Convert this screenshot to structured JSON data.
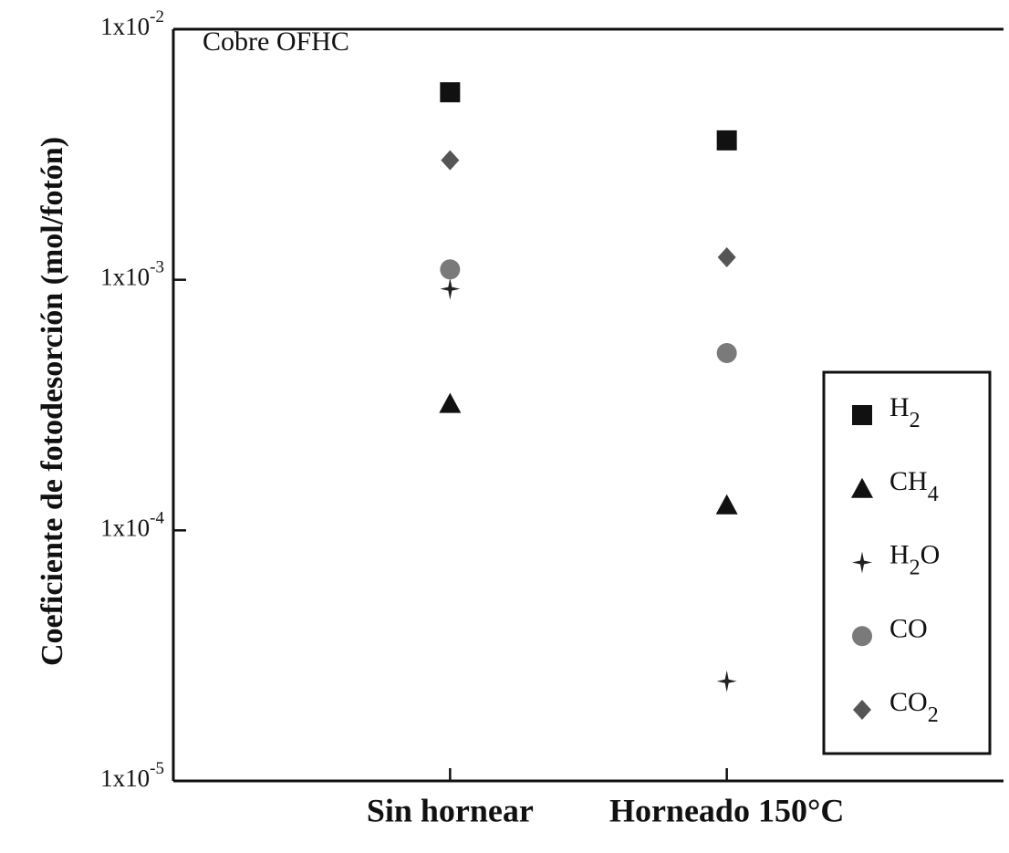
{
  "chart_data": {
    "type": "scatter",
    "annotation": "Cobre OFHC",
    "y_label": "Coeficiente de fotodesorción (mol/fotón)",
    "categories": [
      "Sin hornear",
      "Horneado 150°C"
    ],
    "log_y": true,
    "ylim": [
      1e-05,
      0.01
    ],
    "yticks": [
      {
        "value": 1e-05,
        "label": "1x10-5"
      },
      {
        "value": 0.0001,
        "label": "1x10-4"
      },
      {
        "value": 0.001,
        "label": "1x10-3"
      },
      {
        "value": 0.01,
        "label": "1x10-2"
      }
    ],
    "legend": "right",
    "series": [
      {
        "name": "H2",
        "marker": "square",
        "color": "#111111",
        "values": [
          0.0056,
          0.0036
        ]
      },
      {
        "name": "CH4",
        "marker": "triangle",
        "color": "#111111",
        "values": [
          0.00032,
          0.000126
        ]
      },
      {
        "name": "H2O",
        "marker": "star",
        "color": "#222222",
        "values": [
          0.00092,
          2.5e-05
        ]
      },
      {
        "name": "CO",
        "marker": "circle",
        "color": "#7a7a7a",
        "values": [
          0.0011,
          0.00051
        ]
      },
      {
        "name": "CO2",
        "marker": "diamond",
        "color": "#555555",
        "values": [
          0.003,
          0.00123
        ]
      }
    ]
  }
}
